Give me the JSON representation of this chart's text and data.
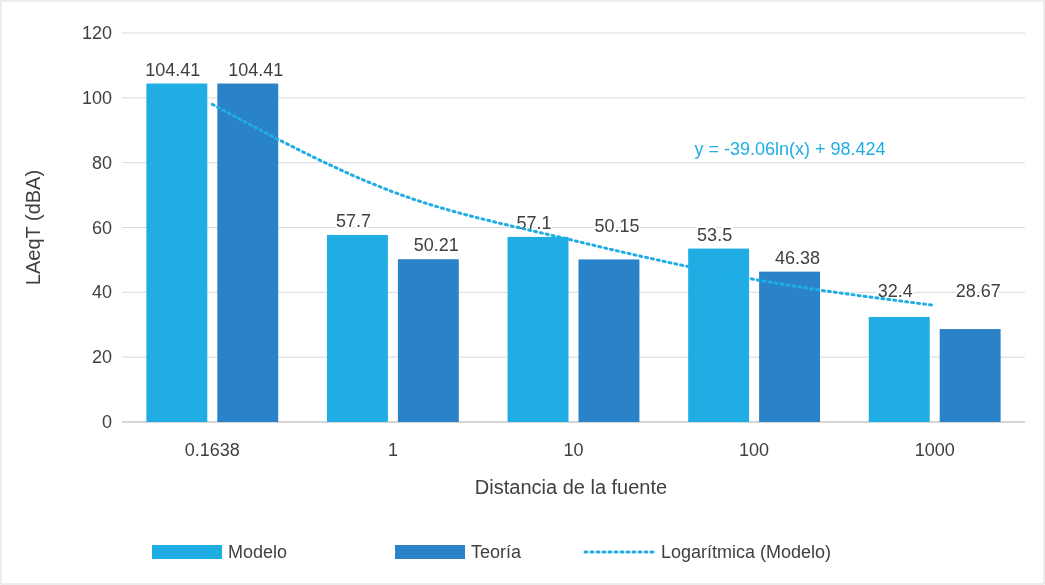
{
  "chart_data": {
    "type": "bar",
    "xlabel": "Distancia de la fuente",
    "ylabel": "LAeqT (dBA)",
    "categories": [
      "0.1638",
      "1",
      "10",
      "100",
      "1000"
    ],
    "series": [
      {
        "name": "Modelo",
        "color": "#1fade4",
        "values": [
          104.41,
          57.7,
          57.1,
          53.5,
          32.4
        ],
        "value_labels": [
          "104.41",
          "57.7",
          "57.1",
          "53.5",
          "32.4"
        ]
      },
      {
        "name": "Teoría",
        "color": "#2a82c9",
        "values": [
          104.41,
          50.21,
          50.15,
          46.38,
          28.67
        ],
        "value_labels": [
          "104.41",
          "50.21",
          "50.15",
          "46.38",
          "28.67"
        ]
      },
      {
        "name": "Logarítmica (Modelo)",
        "type": "line",
        "color": "#1fade4",
        "line_style": "dotted",
        "values": [
          98,
          71,
          56,
          44,
          36
        ]
      }
    ],
    "annotations": [
      "y = -39.06ln(x) + 98.424"
    ],
    "ylim": [
      0,
      120
    ],
    "yticks": [
      0,
      20,
      40,
      60,
      80,
      100,
      120
    ],
    "grid": "y",
    "legend": "bottom"
  }
}
